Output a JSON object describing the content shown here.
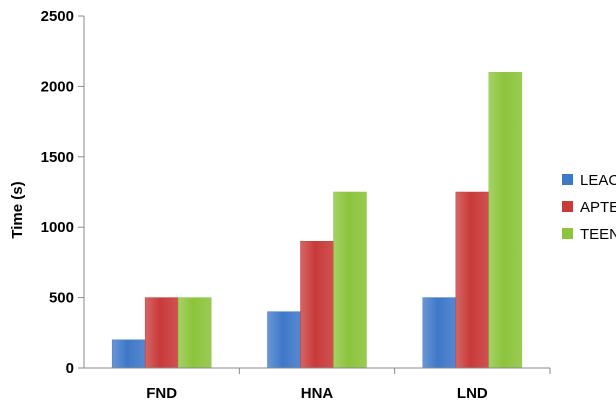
{
  "chart_data": {
    "type": "bar",
    "title": "",
    "xlabel": "",
    "ylabel": "Time (s)",
    "ylim": [
      0,
      2500
    ],
    "yticks": [
      0,
      500,
      1000,
      1500,
      2000,
      2500
    ],
    "grid": false,
    "legend_position": "right",
    "categories": [
      "FND",
      "HNA",
      "LND"
    ],
    "series": [
      {
        "name": "LEACH",
        "values": [
          200,
          400,
          500
        ],
        "color": "#3f78c9"
      },
      {
        "name": "APTEEN",
        "values": [
          500,
          900,
          1250
        ],
        "color": "#c93a3a"
      },
      {
        "name": "TEEN",
        "values": [
          500,
          1250,
          2100
        ],
        "color": "#8cc43c"
      }
    ]
  }
}
